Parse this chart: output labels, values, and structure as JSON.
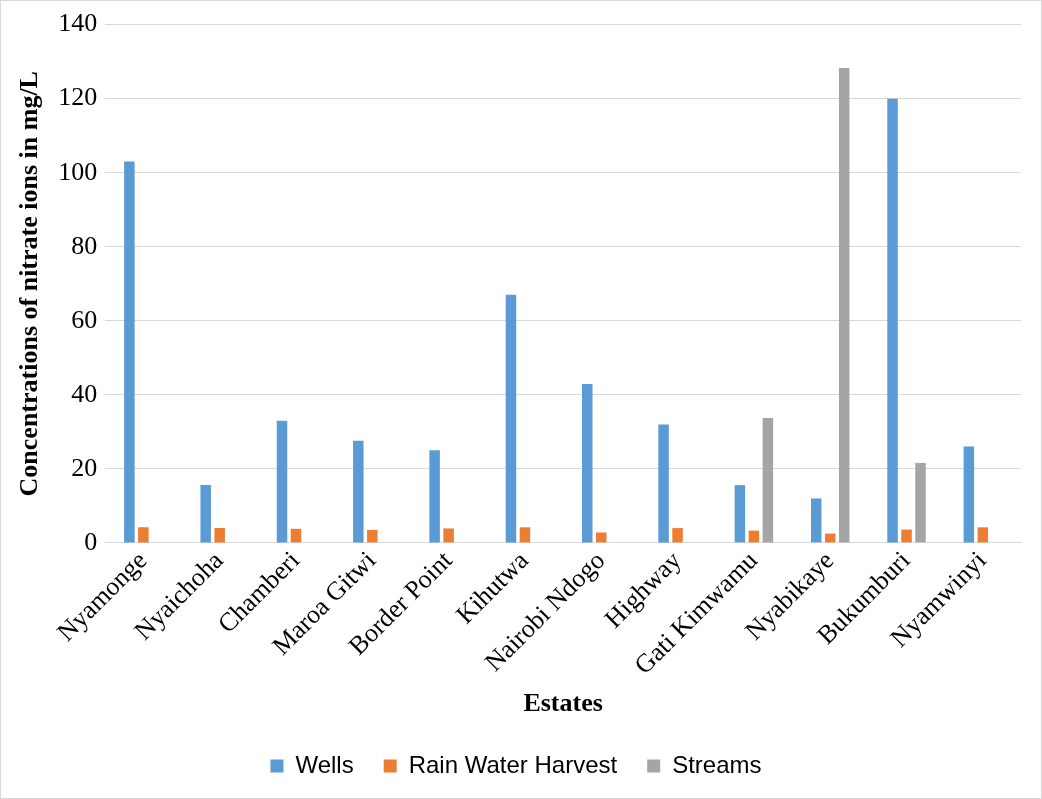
{
  "chart_data": {
    "type": "bar",
    "xlabel": "Estates",
    "ylabel": "Concentrations of nitrate ions in mg/L",
    "categories": [
      "Nyamonge",
      "Nyaichoha",
      "Chamberi",
      "Maroa Gitwi",
      "Border Point",
      "Kihutwa",
      "Nairobi Ndogo",
      "Highway",
      "Gati Kimwamu",
      "Nyabikaye",
      "Bukumburi",
      "Nyamwinyi"
    ],
    "series": [
      {
        "name": "Wells",
        "color": "#5b9bd5",
        "values": [
          103,
          15.6,
          33,
          27.6,
          25,
          67,
          42.9,
          32,
          15.6,
          12,
          120,
          26
        ]
      },
      {
        "name": "Rain Water Harvest",
        "color": "#ed7d31",
        "values": [
          4.2,
          4,
          3.8,
          3.5,
          3.9,
          4.2,
          2.8,
          4,
          3.3,
          2.5,
          3.6,
          4.2
        ]
      },
      {
        "name": "Streams",
        "color": "#a5a5a5",
        "values": [
          null,
          null,
          null,
          null,
          null,
          null,
          null,
          null,
          33.7,
          128.3,
          21.6,
          null
        ]
      }
    ],
    "ylim": [
      0,
      140
    ],
    "yticks": [
      0,
      20,
      40,
      60,
      80,
      100,
      120,
      140
    ],
    "grid": "y",
    "legend": "bottom"
  }
}
